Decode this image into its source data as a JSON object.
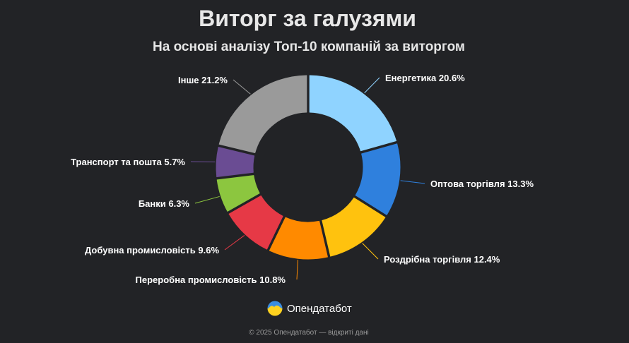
{
  "chart_data": {
    "type": "pie",
    "title": "Виторг за галузями",
    "subtitle": "На основі аналізу Топ-10 компаній за виторгом",
    "slices": [
      {
        "label": "Енергетика",
        "value": 20.6,
        "display": "Енергетика 20.6%",
        "color": "#8fd3ff"
      },
      {
        "label": "Оптова торгівля",
        "value": 13.3,
        "display": "Оптова торгівля 13.3%",
        "color": "#2f80dd"
      },
      {
        "label": "Роздрібна торгівля",
        "value": 12.4,
        "display": "Роздрібна торгівля 12.4%",
        "color": "#ffc20e"
      },
      {
        "label": "Переробна промисловість",
        "value": 10.8,
        "display": "Переробна промисловість 10.8%",
        "color": "#ff8a00"
      },
      {
        "label": "Добувна промисловість",
        "value": 9.6,
        "display": "Добувна промисловість 9.6%",
        "color": "#e63946"
      },
      {
        "label": "Банки",
        "value": 6.3,
        "display": "Банки 6.3%",
        "color": "#8cc63f"
      },
      {
        "label": "Транспорт та пошта",
        "value": 5.7,
        "display": "Транспорт та пошта 5.7%",
        "color": "#6a4c93"
      },
      {
        "label": "Інше",
        "value": 21.2,
        "display": "Інше 21.2%",
        "color": "#9a9a9a"
      }
    ]
  },
  "brand": {
    "name": "Опендатабот",
    "icon": "opendatabot-logo-icon"
  },
  "footer": "© 2025 Опендатабот — відкриті дані"
}
